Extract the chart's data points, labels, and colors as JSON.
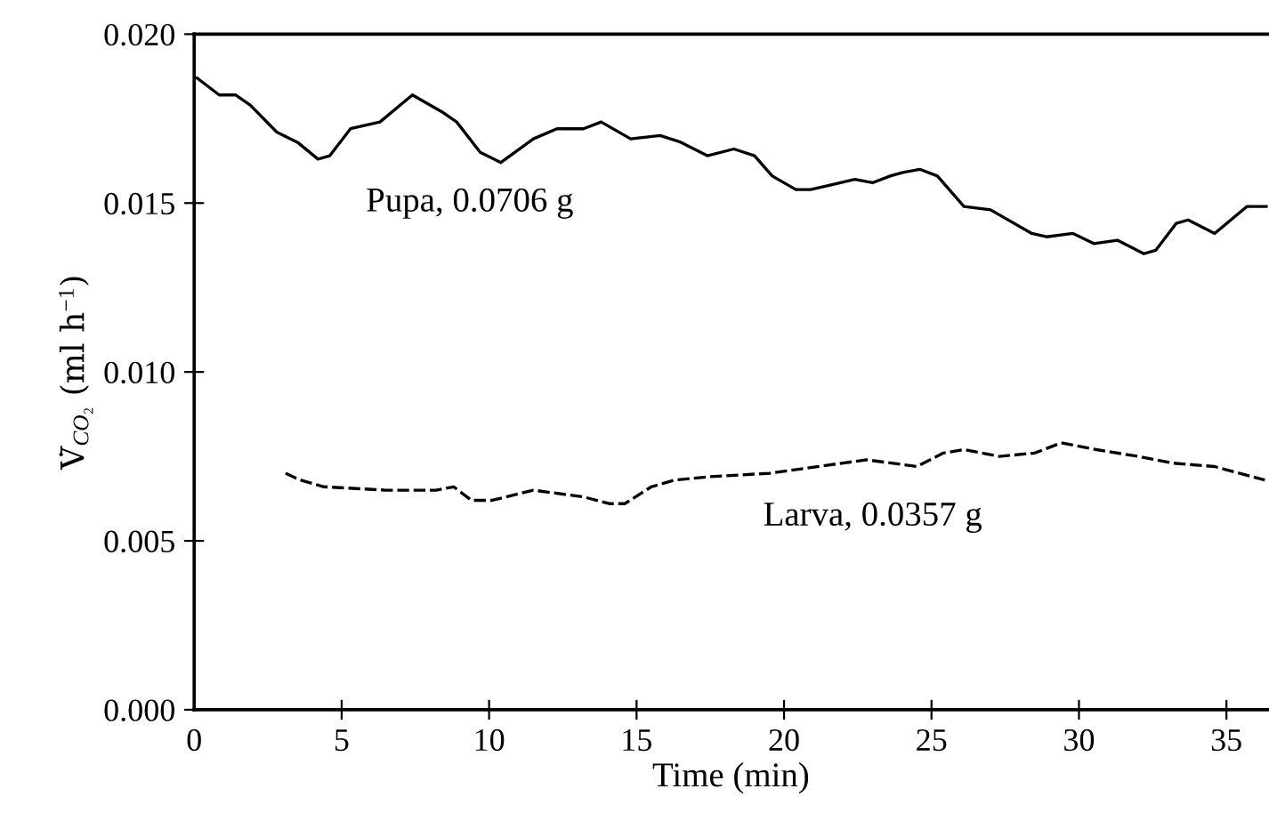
{
  "chart_data": {
    "type": "line",
    "xlabel": "Time (min)",
    "ylabel": "V̇$_{CO₂}$ (ml h$^{−1}$)",
    "xlim": [
      0,
      36.4
    ],
    "xticks": [
      0,
      5,
      10,
      15,
      20,
      25,
      30,
      35
    ],
    "ylim": [
      0,
      0.02
    ],
    "yticks": [
      {
        "value": 0,
        "label": "0.000"
      },
      {
        "value": 0.005,
        "label": "0.005"
      },
      {
        "value": 0.01,
        "label": "0.010"
      },
      {
        "value": 0.015,
        "label": "0.015"
      },
      {
        "value": 0.02,
        "label": "0.020"
      }
    ],
    "grid": false,
    "legend": false,
    "marker": "none",
    "series": [
      {
        "color": "#000000",
        "line_style": "solid",
        "x": [
          0.1,
          0.85,
          1.4,
          1.9,
          2.8,
          3.5,
          4.2,
          4.6,
          5.3,
          6.3,
          7.4,
          8.4,
          8.9,
          9.7,
          10.4,
          11.5,
          12.3,
          13.2,
          13.8,
          14.8,
          15.8,
          16.5,
          17.4,
          18.3,
          19.0,
          19.6,
          20.4,
          20.9,
          21.4,
          22.4,
          23.0,
          23.6,
          24.0,
          24.6,
          25.2,
          26.1,
          27.0,
          28.4,
          28.9,
          29.8,
          30.5,
          31.3,
          32.2,
          32.6,
          33.3,
          33.7,
          34.6,
          35.7,
          36.4
        ],
        "values": [
          0.0187,
          0.0182,
          0.0182,
          0.0179,
          0.0171,
          0.0168,
          0.0163,
          0.0164,
          0.0172,
          0.0174,
          0.0182,
          0.0177,
          0.0174,
          0.0165,
          0.0162,
          0.0169,
          0.0172,
          0.0172,
          0.0174,
          0.0169,
          0.017,
          0.0168,
          0.0164,
          0.0166,
          0.0164,
          0.0158,
          0.0154,
          0.0154,
          0.0155,
          0.0157,
          0.0156,
          0.0158,
          0.0159,
          0.016,
          0.0158,
          0.0149,
          0.0148,
          0.0141,
          0.014,
          0.0141,
          0.0138,
          0.0139,
          0.0135,
          0.0136,
          0.0144,
          0.0145,
          0.0141,
          0.0149,
          0.0149
        ]
      },
      {
        "color": "#000000",
        "line_style": "dashed",
        "x": [
          3.1,
          3.6,
          4.4,
          6.5,
          8.2,
          8.8,
          9.4,
          10.1,
          11.5,
          13.2,
          14.1,
          14.6,
          15.5,
          16.3,
          17.5,
          19.5,
          22.8,
          24.5,
          25.4,
          26.1,
          27.3,
          28.5,
          29.4,
          30.6,
          32.0,
          33.2,
          34.6,
          36.3
        ],
        "values": [
          0.007,
          0.0068,
          0.0066,
          0.0065,
          0.0065,
          0.0066,
          0.0062,
          0.0062,
          0.0065,
          0.0063,
          0.0061,
          0.0061,
          0.0066,
          0.0068,
          0.0069,
          0.007,
          0.0074,
          0.0072,
          0.0076,
          0.0077,
          0.0075,
          0.0076,
          0.0079,
          0.0077,
          0.0075,
          0.0073,
          0.0072,
          0.0068
        ]
      }
    ],
    "annotations": [
      "Pupa, 0.0706 g",
      "Larva, 0.0357 g"
    ]
  }
}
